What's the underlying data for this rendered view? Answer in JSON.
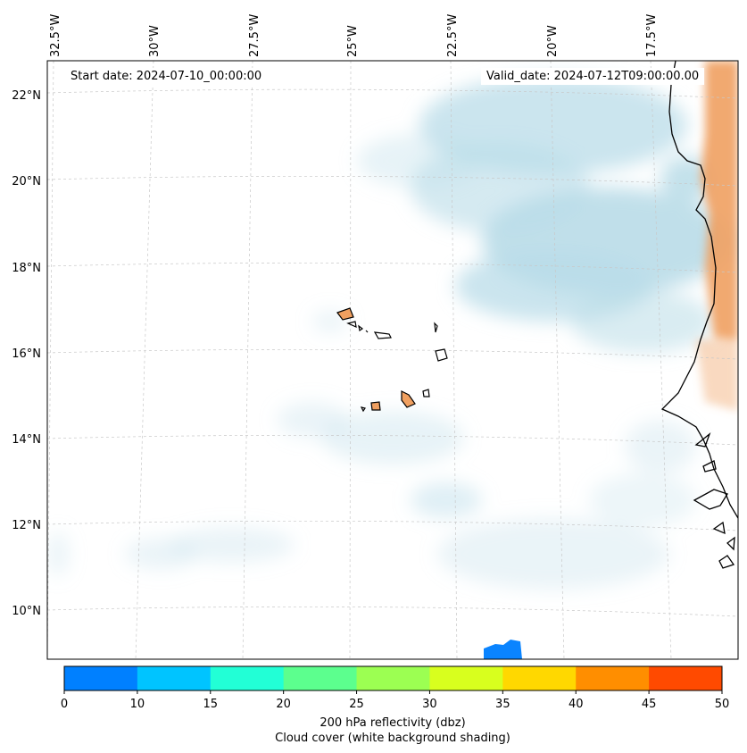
{
  "map": {
    "start_label": "Start date: 2024-07-10_00:00:00",
    "valid_label": "Valid_date: 2024-07-12T09:00:00.00",
    "longitude_labels": [
      "32.5°W",
      "30°W",
      "27.5°W",
      "25°W",
      "22.5°W",
      "20°W",
      "17.5°W"
    ],
    "latitude_labels": [
      "22°N",
      "20°N",
      "18°N",
      "16°N",
      "14°N",
      "12°N",
      "10°N"
    ]
  },
  "colorbar": {
    "ticks": [
      "0",
      "10",
      "15",
      "20",
      "25",
      "30",
      "35",
      "40",
      "45",
      "50"
    ],
    "colors": [
      "#0080ff",
      "#00c4ff",
      "#22ffd6",
      "#5cff8e",
      "#9cff52",
      "#d8ff1e",
      "#ffd800",
      "#ff8e00",
      "#ff4a00"
    ],
    "title": "200 hPa reflectivity (dbz)",
    "subtitle": "Cloud cover (white background shading)"
  },
  "colors": {
    "cloud": "#b9dce8",
    "warm_reflectivity": "#f0a060",
    "weak_reflectivity": "#0a84ff",
    "coast": "#000000",
    "grid": "#c8c8c8"
  }
}
